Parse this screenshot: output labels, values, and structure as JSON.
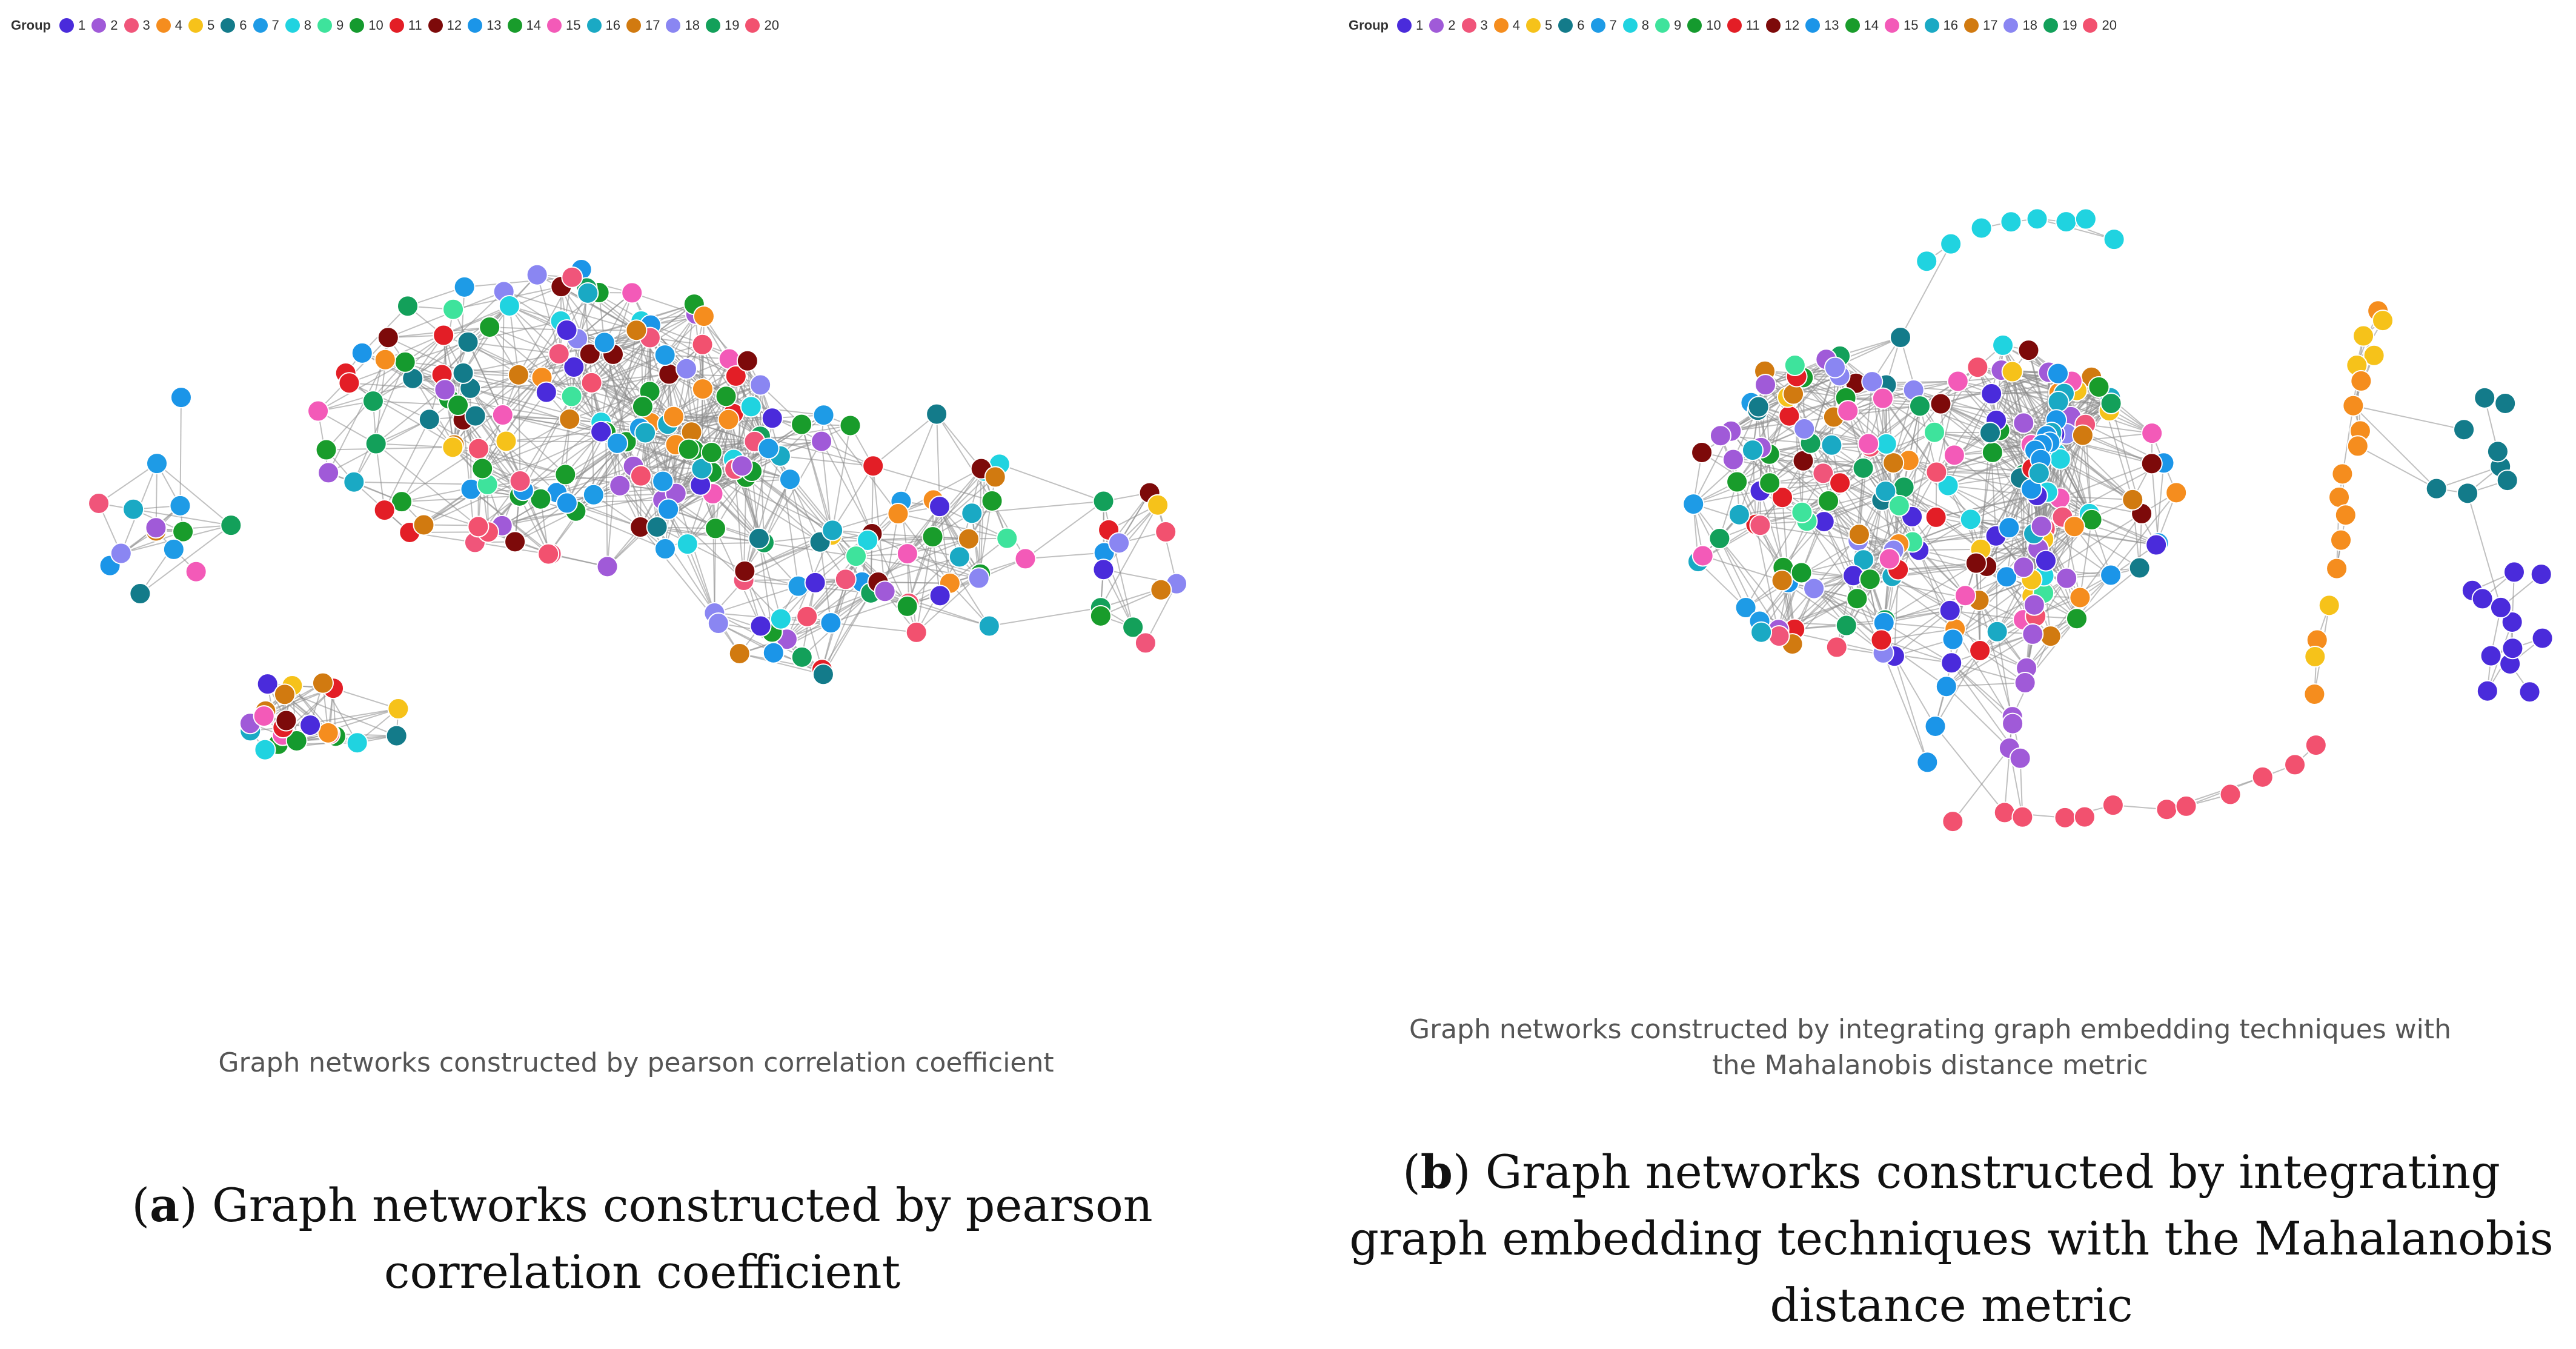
{
  "legend": {
    "title": "Group",
    "groups": [
      {
        "label": "1",
        "color": "#4a2bdb"
      },
      {
        "label": "2",
        "color": "#a05ad8"
      },
      {
        "label": "3",
        "color": "#f0557a"
      },
      {
        "label": "4",
        "color": "#f58d1e"
      },
      {
        "label": "5",
        "color": "#f6c21a"
      },
      {
        "label": "6",
        "color": "#137b8a"
      },
      {
        "label": "7",
        "color": "#1e9be6"
      },
      {
        "label": "8",
        "color": "#20d3e0"
      },
      {
        "label": "9",
        "color": "#3ee39c"
      },
      {
        "label": "10",
        "color": "#159a2e"
      },
      {
        "label": "11",
        "color": "#e31e26"
      },
      {
        "label": "12",
        "color": "#7d0a0a"
      },
      {
        "label": "13",
        "color": "#1b95e8"
      },
      {
        "label": "14",
        "color": "#199c2b"
      },
      {
        "label": "15",
        "color": "#f35ab8"
      },
      {
        "label": "16",
        "color": "#1aa9c4"
      },
      {
        "label": "17",
        "color": "#d17a10"
      },
      {
        "label": "18",
        "color": "#8a86f2"
      },
      {
        "label": "19",
        "color": "#13a05a"
      },
      {
        "label": "20",
        "color": "#f2516f"
      }
    ]
  },
  "panel_a": {
    "inner_caption": "Graph networks constructed by pearson correlation coefficient",
    "label_letter": "a",
    "caption": "Graph networks constructed by pearson correlation coefficient"
  },
  "panel_b": {
    "inner_caption": "Graph networks constructed by integrating graph embedding techniques with the Mahalanobis distance metric",
    "label_letter": "b",
    "caption": "Graph networks constructed by integrating graph embedding techniques with the Mahalanobis distance metric"
  }
}
